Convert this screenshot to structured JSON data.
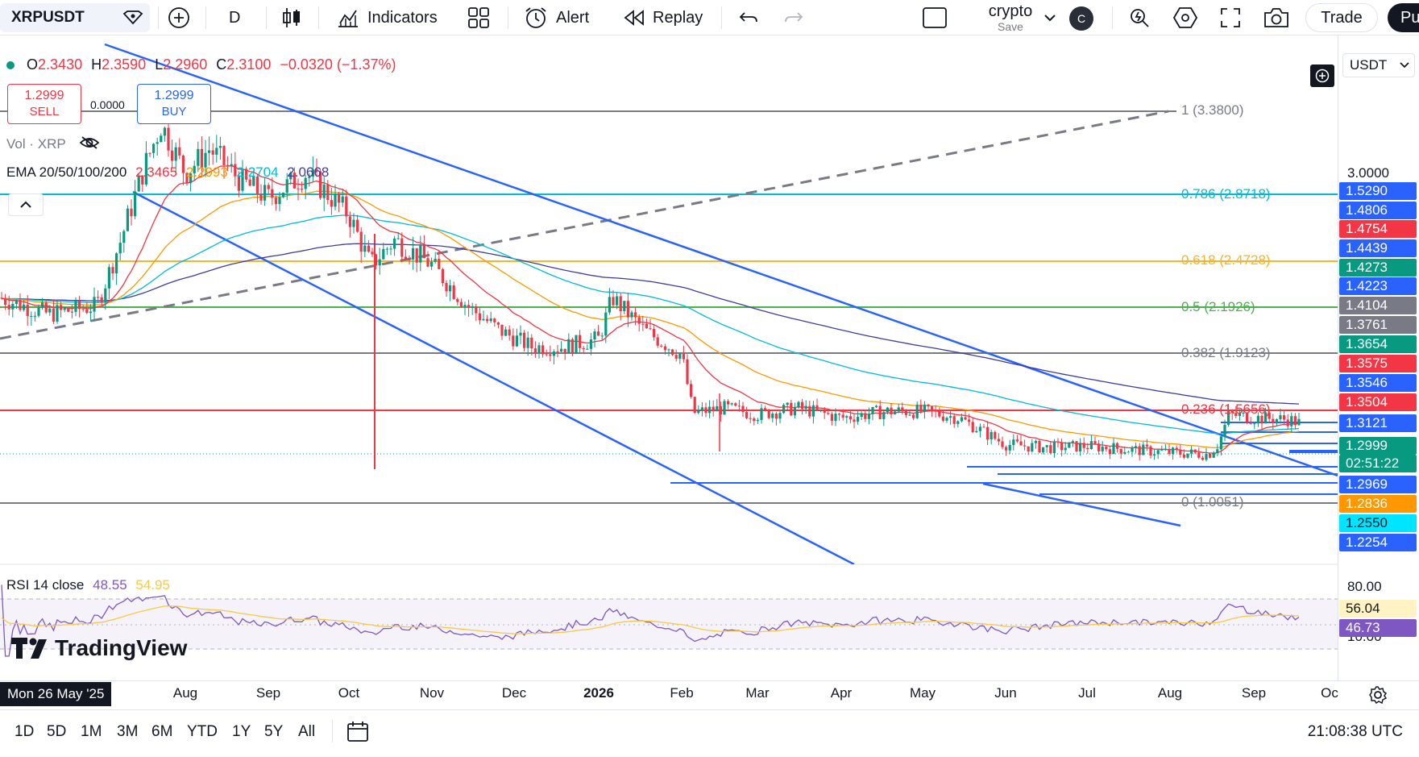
{
  "toolbar": {
    "symbol": "XRPUSDT",
    "interval": "D",
    "indicators_label": "Indicators",
    "alert_label": "Alert",
    "replay_label": "Replay",
    "layout_name": "crypto",
    "layout_save": "Save",
    "avatar_letter": "C",
    "trade_label": "Trade",
    "publish_label": "Pu"
  },
  "legend": {
    "open_label": "O",
    "open": "2.3430",
    "high_label": "H",
    "high": "2.3590",
    "low_label": "L",
    "low": "2.2960",
    "close_label": "C",
    "close": "2.3100",
    "change": "−0.0320 (−1.37%)",
    "sell_price": "1.2999",
    "sell_label": "SELL",
    "buy_price": "1.2999",
    "buy_label": "BUY",
    "spread": "0.0000",
    "volume_label": "Vol · XRP",
    "ema_label": "EMA 20/50/100/200",
    "ema_values": [
      "2.3465",
      "2.2993",
      "2.2704",
      "2.0668"
    ],
    "rsi_label": "RSI 14 close",
    "rsi_values": [
      "48.55",
      "54.95"
    ]
  },
  "fib_levels": [
    {
      "text": "1 (3.3800)",
      "color": "#787b86"
    },
    {
      "text": "0.786 (2.8718)",
      "color": "#00bcd4"
    },
    {
      "text": "0.618 (2.4728)",
      "color": "#f7b32b"
    },
    {
      "text": "0.5 (2.1926)",
      "color": "#4caf50"
    },
    {
      "text": "0.382 (1.9123)",
      "color": "#787b86"
    },
    {
      "text": "0.236 (1.5656)",
      "color": "#f23645"
    },
    {
      "text": "0 (1.0051)",
      "color": "#787b86"
    }
  ],
  "price_scale": {
    "currency": "USDT",
    "top_tick": "3.0000",
    "labels": [
      {
        "text": "1.5290",
        "color": "#2962ff"
      },
      {
        "text": "1.4806",
        "color": "#2962ff"
      },
      {
        "text": "1.4754",
        "color": "#f23645"
      },
      {
        "text": "1.4439",
        "color": "#2962ff"
      },
      {
        "text": "1.4273",
        "color": "#089981"
      },
      {
        "text": "1.4223",
        "color": "#2962ff"
      },
      {
        "text": "1.4104",
        "color": "#787b86"
      },
      {
        "text": "1.3761",
        "color": "#787b86"
      },
      {
        "text": "1.3654",
        "color": "#089981"
      },
      {
        "text": "1.3575",
        "color": "#f23645"
      },
      {
        "text": "1.3546",
        "color": "#2962ff"
      },
      {
        "text": "1.3504",
        "color": "#f23645"
      },
      {
        "text": "1.3121",
        "color": "#2962ff"
      },
      {
        "text": "1.2999",
        "color": "#089981"
      },
      {
        "text": "02:51:22",
        "color": "#089981"
      },
      {
        "text": "1.2969",
        "color": "#2962ff"
      },
      {
        "text": "1.2836",
        "color": "#ff9800"
      },
      {
        "text": "1.2550",
        "color": "#00e5ff"
      },
      {
        "text": "1.2254",
        "color": "#2962ff"
      }
    ],
    "rsi_ticks": [
      "80.00",
      "10.00"
    ],
    "rsi_labels": [
      {
        "text": "56.04",
        "color": "#fff3c4"
      },
      {
        "text": "46.73",
        "color": "#7e57c2"
      }
    ]
  },
  "time_axis": {
    "labels": [
      "Aug",
      "Sep",
      "Oct",
      "Nov",
      "Dec",
      "2026",
      "Feb",
      "Mar",
      "Apr",
      "May",
      "Jun",
      "Jul",
      "Aug",
      "Sep",
      "Oc"
    ],
    "cursor_date": "Mon 26 May '25"
  },
  "bottom_bar": {
    "ranges": [
      "1D",
      "5D",
      "1M",
      "3M",
      "6M",
      "YTD",
      "1Y",
      "5Y",
      "All"
    ],
    "clock": "21:08:38 UTC"
  },
  "brand": "TradingView",
  "chart_data": {
    "type": "candlestick",
    "symbol": "XRPUSDT",
    "interval": "D",
    "last_close": 1.2999,
    "ohlc_legend": {
      "open": 2.343,
      "high": 2.359,
      "low": 2.296,
      "close": 2.31
    },
    "approx_close_by_month": [
      {
        "x": "Aug",
        "y": 3.0
      },
      {
        "x": "Sep",
        "y": 2.85
      },
      {
        "x": "Oct",
        "y": 2.6
      },
      {
        "x": "Nov",
        "y": 2.3
      },
      {
        "x": "Dec",
        "y": 1.95
      },
      {
        "x": "2026",
        "y": 1.9
      },
      {
        "x": "Feb",
        "y": 1.55
      },
      {
        "x": "Mar",
        "y": 1.45
      },
      {
        "x": "Apr",
        "y": 1.4
      },
      {
        "x": "May",
        "y": 1.45
      },
      {
        "x": "Jun",
        "y": 1.33
      },
      {
        "x": "Jul",
        "y": 1.3
      },
      {
        "x": "Aug",
        "y": 1.29
      },
      {
        "x": "Sep",
        "y": 1.4
      }
    ],
    "fibonacci": [
      {
        "ratio": 1,
        "price": 3.38
      },
      {
        "ratio": 0.786,
        "price": 2.8718
      },
      {
        "ratio": 0.618,
        "price": 2.4728
      },
      {
        "ratio": 0.5,
        "price": 2.1926
      },
      {
        "ratio": 0.382,
        "price": 1.9123
      },
      {
        "ratio": 0.236,
        "price": 1.5656
      },
      {
        "ratio": 0,
        "price": 1.0051
      }
    ],
    "rsi": {
      "period": 14,
      "value": 48.55,
      "ma": 54.95,
      "upper": 80,
      "lower": 10
    }
  }
}
